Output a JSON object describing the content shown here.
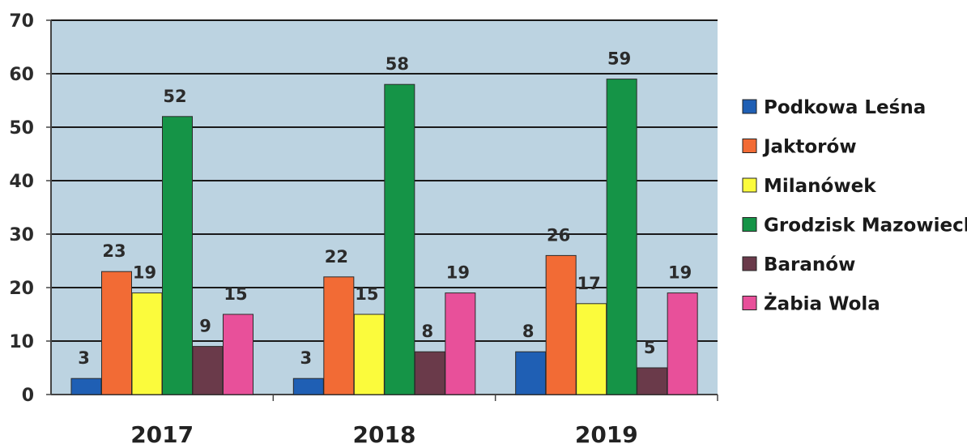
{
  "chart_data": {
    "type": "bar",
    "categories": [
      "2017",
      "2018",
      "2019"
    ],
    "series": [
      {
        "name": "Podkowa Leśna",
        "values": [
          3,
          3,
          8
        ],
        "color": "#1f5fb4"
      },
      {
        "name": "Jaktorów",
        "values": [
          23,
          22,
          26
        ],
        "color": "#f26b35"
      },
      {
        "name": "Milanówek",
        "values": [
          19,
          15,
          17
        ],
        "color": "#fbfb3c"
      },
      {
        "name": "Grodzisk Mazowiecki",
        "values": [
          52,
          58,
          59
        ],
        "color": "#159447"
      },
      {
        "name": "Baranów",
        "values": [
          9,
          8,
          5
        ],
        "color": "#6a3a4a"
      },
      {
        "name": "Żabia Wola",
        "values": [
          15,
          19,
          19
        ],
        "color": "#e8509a"
      }
    ],
    "data_labels": [
      [
        "3",
        "23",
        "19",
        "52",
        "9",
        "15"
      ],
      [
        "3",
        "22",
        "15",
        "58",
        "8",
        "19"
      ],
      [
        "8",
        "26",
        "17",
        "59",
        "5",
        "19"
      ]
    ],
    "ylim": [
      0,
      70
    ],
    "yticks": [
      "0",
      "10",
      "20",
      "30",
      "40",
      "50",
      "60",
      "70"
    ],
    "grid": true,
    "legend_position": "right",
    "plot_background": "#bcd3e1"
  }
}
